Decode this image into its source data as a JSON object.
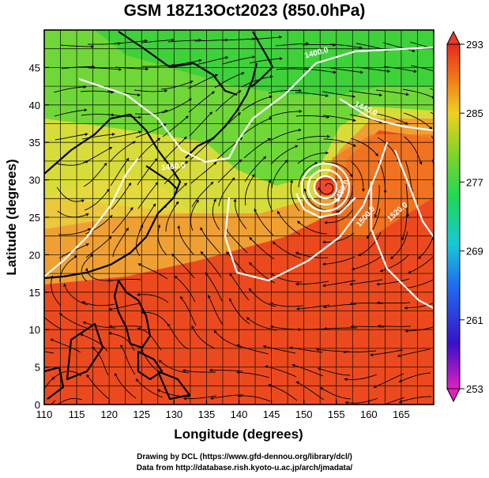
{
  "title": "GSM 18Z13Oct2023 (850.0hPa)",
  "x_axis": {
    "label": "Longitude (degrees)",
    "range": [
      110,
      170
    ],
    "ticks": [
      110,
      115,
      120,
      125,
      130,
      135,
      140,
      145,
      150,
      155,
      160,
      165
    ]
  },
  "y_axis": {
    "label": "Latitude  (degrees)",
    "range": [
      0,
      50
    ],
    "ticks": [
      0,
      5,
      10,
      15,
      20,
      25,
      30,
      35,
      40,
      45
    ]
  },
  "colorbar": {
    "range": [
      253,
      293
    ],
    "labels": [
      293,
      285,
      277,
      269,
      261,
      253
    ]
  },
  "contours": [
    {
      "label": "1400.0"
    },
    {
      "label": "1440.0"
    },
    {
      "label": "1460.0"
    },
    {
      "label": "1480.0"
    },
    {
      "label": "1500.0"
    },
    {
      "label": "1520.0"
    }
  ],
  "credits": [
    "Drawing by DCL (https://www.gfd-dennou.org/library/dcl/)",
    "Data from http://database.rish.kyoto-u.ac.jp/arch/jmadata/"
  ]
}
